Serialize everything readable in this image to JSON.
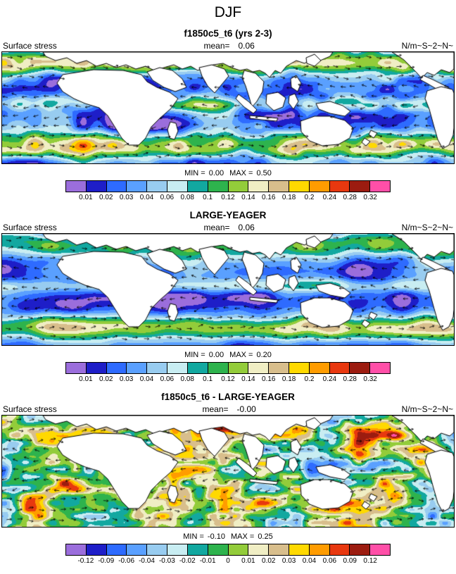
{
  "figure_title": "DJF",
  "colorbar_colors": [
    "#9B6EDC",
    "#1E1EC8",
    "#2E6BFF",
    "#5AA0FF",
    "#98CCF0",
    "#C8EDF2",
    "#12A8A0",
    "#2EB34D",
    "#93CC3A",
    "#F0EEC4",
    "#D8BE8C",
    "#FFD900",
    "#FF9C00",
    "#E8380F",
    "#9C1C10",
    "#FF4FA8"
  ],
  "panels": [
    {
      "title": "f1850c5_t6 (yrs 2-3)",
      "field_label": "Surface stress",
      "mean_label": "mean=",
      "mean_value": "0.06",
      "units": "N/m~S~2~N~",
      "min_label": "MIN =",
      "min_value": "0.00",
      "max_label": "MAX =",
      "max_value": "0.50",
      "colorbar_ticks": [
        "0.01",
        "0.02",
        "0.03",
        "0.04",
        "0.06",
        "0.08",
        "0.1",
        "0.12",
        "0.14",
        "0.16",
        "0.18",
        "0.2",
        "0.24",
        "0.28",
        "0.32"
      ]
    },
    {
      "title": "LARGE-YEAGER",
      "field_label": "Surface stress",
      "mean_label": "mean=",
      "mean_value": "0.06",
      "units": "N/m~S~2~N~",
      "min_label": "MIN =",
      "min_value": "0.00",
      "max_label": "MAX =",
      "max_value": "0.20",
      "colorbar_ticks": [
        "0.01",
        "0.02",
        "0.03",
        "0.04",
        "0.06",
        "0.08",
        "0.1",
        "0.12",
        "0.14",
        "0.16",
        "0.18",
        "0.2",
        "0.24",
        "0.28",
        "0.32"
      ]
    },
    {
      "title": "f1850c5_t6 - LARGE-YEAGER",
      "field_label": "Surface stress",
      "mean_label": "mean=",
      "mean_value": "-0.00",
      "units": "N/m~S~2~N~",
      "min_label": "MIN =",
      "min_value": "-0.10",
      "max_label": "MAX =",
      "max_value": "0.25",
      "colorbar_ticks": [
        "-0.12",
        "-0.09",
        "-0.06",
        "-0.04",
        "-0.03",
        "-0.02",
        "-0.01",
        "0",
        "0.01",
        "0.02",
        "0.03",
        "0.04",
        "0.06",
        "0.09",
        "0.12"
      ]
    }
  ],
  "chart_data": [
    {
      "type": "heatmap",
      "title": "f1850c5_t6 (yrs 2-3)",
      "variable": "Surface stress",
      "season": "DJF",
      "units": "N/m~S~2~N~",
      "mean": 0.06,
      "min": 0.0,
      "max": 0.5,
      "colorbar_levels": [
        0.01,
        0.02,
        0.03,
        0.04,
        0.06,
        0.08,
        0.1,
        0.12,
        0.14,
        0.16,
        0.18,
        0.2,
        0.24,
        0.28,
        0.32
      ],
      "overlay": "surface stress vector arrows",
      "extent": "global oceans, land masked white",
      "legend_position": "bottom"
    },
    {
      "type": "heatmap",
      "title": "LARGE-YEAGER",
      "variable": "Surface stress",
      "season": "DJF",
      "units": "N/m~S~2~N~",
      "mean": 0.06,
      "min": 0.0,
      "max": 0.2,
      "colorbar_levels": [
        0.01,
        0.02,
        0.03,
        0.04,
        0.06,
        0.08,
        0.1,
        0.12,
        0.14,
        0.16,
        0.18,
        0.2,
        0.24,
        0.28,
        0.32
      ],
      "overlay": "surface stress vector arrows",
      "extent": "global oceans, land masked white",
      "legend_position": "bottom"
    },
    {
      "type": "heatmap",
      "title": "f1850c5_t6 - LARGE-YEAGER",
      "variable": "Surface stress difference",
      "season": "DJF",
      "units": "N/m~S~2~N~",
      "mean": -0.0,
      "min": -0.1,
      "max": 0.25,
      "colorbar_levels": [
        -0.12,
        -0.09,
        -0.06,
        -0.04,
        -0.03,
        -0.02,
        -0.01,
        0,
        0.01,
        0.02,
        0.03,
        0.04,
        0.06,
        0.09,
        0.12
      ],
      "overlay": "surface stress difference vector arrows",
      "extent": "global oceans, land masked white",
      "legend_position": "bottom"
    }
  ]
}
